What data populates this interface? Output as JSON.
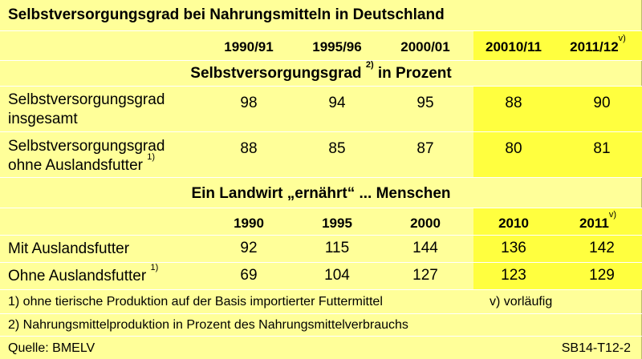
{
  "title": "Selbstversorgungsgrad bei Nahrungsmitteln in Deutschland",
  "section1": {
    "years": [
      "1990/91",
      "1995/96",
      "2000/01",
      "20010/11",
      "2011/12"
    ],
    "last_year_note": "v)",
    "heading": "Selbstversorgungsgrad",
    "heading_note": "2)",
    "heading_suffix": "in Prozent",
    "rows": [
      {
        "label_line1": "Selbstversorgungsgrad",
        "label_line2": "insgesamt",
        "note": "",
        "values": [
          "98",
          "94",
          "95",
          "88",
          "90"
        ]
      },
      {
        "label_line1": "Selbstversorgungsgrad",
        "label_line2": "ohne Auslandsfutter",
        "note": "1)",
        "values": [
          "88",
          "85",
          "87",
          "80",
          "81"
        ]
      }
    ]
  },
  "section2": {
    "heading": "Ein Landwirt „ernährt“ ... Menschen",
    "years": [
      "1990",
      "1995",
      "2000",
      "2010",
      "2011"
    ],
    "last_year_note": "v)",
    "rows": [
      {
        "label": "Mit Auslandsfutter",
        "note": "",
        "values": [
          "92",
          "115",
          "144",
          "136",
          "142"
        ]
      },
      {
        "label": "Ohne Auslandsfutter",
        "note": "1)",
        "values": [
          "69",
          "104",
          "127",
          "123",
          "129"
        ]
      }
    ]
  },
  "footnotes": {
    "note1": "1) ohne tierische Produktion auf der Basis importierter Futtermittel",
    "note_v": "v) vorläufig",
    "note2": "2) Nahrungsmittelproduktion in Prozent des Nahrungsmittelverbrauchs"
  },
  "source": "Quelle: BMELV",
  "code": "SB14-T12-2",
  "colors": {
    "background": "#ffff99",
    "highlight": "#ffff3f",
    "divider": "#ffffff"
  }
}
